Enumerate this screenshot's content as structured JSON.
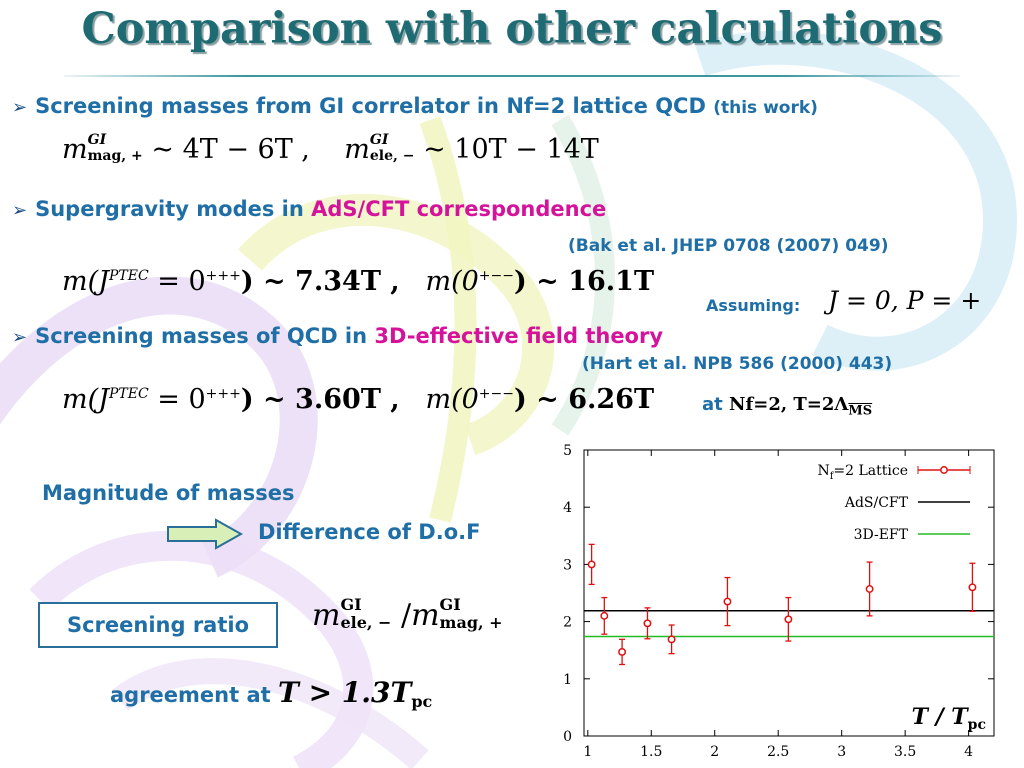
{
  "title": "Comparison with other calculations",
  "bullets": [
    {
      "text": "Screening masses from GI correlator in Nf=2 lattice QCD",
      "note": "(this work)"
    },
    {
      "text": "Supergravity modes in ",
      "highlight": "AdS/CFT correspondence"
    },
    {
      "text": "Screening masses of QCD in ",
      "highlight": "3D-effective field theory"
    }
  ],
  "refs": {
    "ads": "(Bak et al. JHEP 0708 (2007) 049)",
    "eft": "(Hart et al. NPB 586 (2000) 443)"
  },
  "eq1": {
    "m": "m",
    "gi": "GI",
    "mag": "mag, +",
    "ele": "ele, −",
    "rhs_mag": "~ 4T − 6T ,",
    "rhs_ele": "~ 10T − 14T"
  },
  "eq2": {
    "lhs": "m(J",
    "sup": "PTEC",
    "mid": "= 0",
    "sup2": "+++",
    "val1": ") ~ 7.34T ,",
    "lhs2": "m(0",
    "sup3": "+−−",
    "val2": ") ~ 16.1T"
  },
  "eq3": {
    "lhs": "m(J",
    "sup": "PTEC",
    "mid": "= 0",
    "sup2": "+++",
    "val1": ") ~ 3.60T ,",
    "lhs2": "m(0",
    "sup3": "+−−",
    "val2": ") ~ 6.26T"
  },
  "assuming": {
    "label": "Assuming:",
    "cond": "J = 0,  P = +"
  },
  "at_note": {
    "at": "at",
    "cond": "Nf=2, T=2Λ",
    "sub": "MS"
  },
  "magnitude": "Magnitude of masses",
  "difference": "Difference of D.o.F",
  "screening_ratio": "Screening ratio",
  "ratio_eq": {
    "m": "m",
    "gi": "GI",
    "ele": "ele, −",
    "slash": "/",
    "mag": "mag, +"
  },
  "agreement": {
    "label": "agreement at",
    "expr": "T > 1.3T",
    "sub": "pc"
  },
  "chart_data": {
    "type": "scatter",
    "x_ticks": [
      "1",
      "1.5",
      "2",
      "2.5",
      "3",
      "3.5",
      "4"
    ],
    "y_ticks": [
      "0",
      "1",
      "2",
      "3",
      "4",
      "5"
    ],
    "xlim": [
      0.97,
      4.2
    ],
    "ylim": [
      0,
      5
    ],
    "xlabel": "T / T",
    "xlabel_sub": "pc",
    "legend": [
      "Nf=2 Lattice",
      "AdS/CFT",
      "3D-EFT"
    ],
    "legend_placement": "top-right",
    "series": [
      {
        "name": "Nf=2 Lattice",
        "color": "#e01010",
        "x": [
          1.03,
          1.13,
          1.27,
          1.47,
          1.66,
          2.1,
          2.58,
          3.22,
          4.03
        ],
        "y": [
          3.0,
          2.1,
          1.47,
          1.97,
          1.69,
          2.35,
          2.04,
          2.57,
          2.6
        ],
        "err": [
          0.35,
          0.32,
          0.22,
          0.27,
          0.25,
          0.42,
          0.38,
          0.47,
          0.42
        ]
      },
      {
        "name": "AdS/CFT",
        "color": "#000000",
        "y_const": 2.19
      },
      {
        "name": "3D-EFT",
        "color": "#22bb22",
        "y_const": 1.74
      }
    ]
  },
  "colors": {
    "accent": "#1f6fa6",
    "highlight": "#d4129a",
    "title": "#1f6b74"
  }
}
